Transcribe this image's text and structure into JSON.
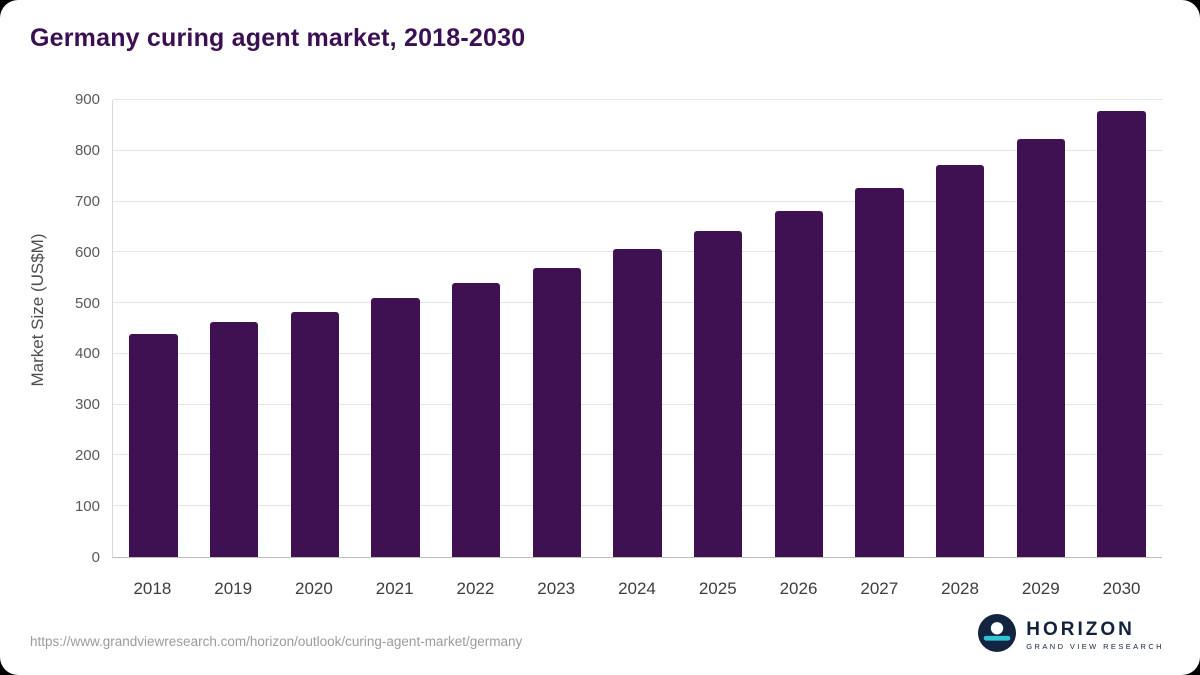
{
  "title": "Germany curing agent market, 2018-2030",
  "source_url": "https://www.grandviewresearch.com/horizon/outlook/curing-agent-market/germany",
  "logo": {
    "name": "HORIZON",
    "subtitle": "GRAND VIEW RESEARCH"
  },
  "colors": {
    "bar": "#3f1152",
    "title": "#3b1053",
    "gridline": "#e4e4e4",
    "logo_navy": "#132440",
    "logo_teal": "#2ec4d6"
  },
  "chart_data": {
    "type": "bar",
    "title": "Germany curing agent market, 2018-2030",
    "categories": [
      "2018",
      "2019",
      "2020",
      "2021",
      "2022",
      "2023",
      "2024",
      "2025",
      "2026",
      "2027",
      "2028",
      "2029",
      "2030"
    ],
    "values": [
      440,
      463,
      482,
      510,
      539,
      570,
      606,
      643,
      682,
      726,
      772,
      823,
      879
    ],
    "xlabel": "",
    "ylabel": "Market Size (US$M)",
    "ylim": [
      0,
      900
    ],
    "yticks": [
      0,
      100,
      200,
      300,
      400,
      500,
      600,
      700,
      800,
      900
    ],
    "grid": true,
    "legend": false,
    "bar_color": "#3f1152"
  }
}
